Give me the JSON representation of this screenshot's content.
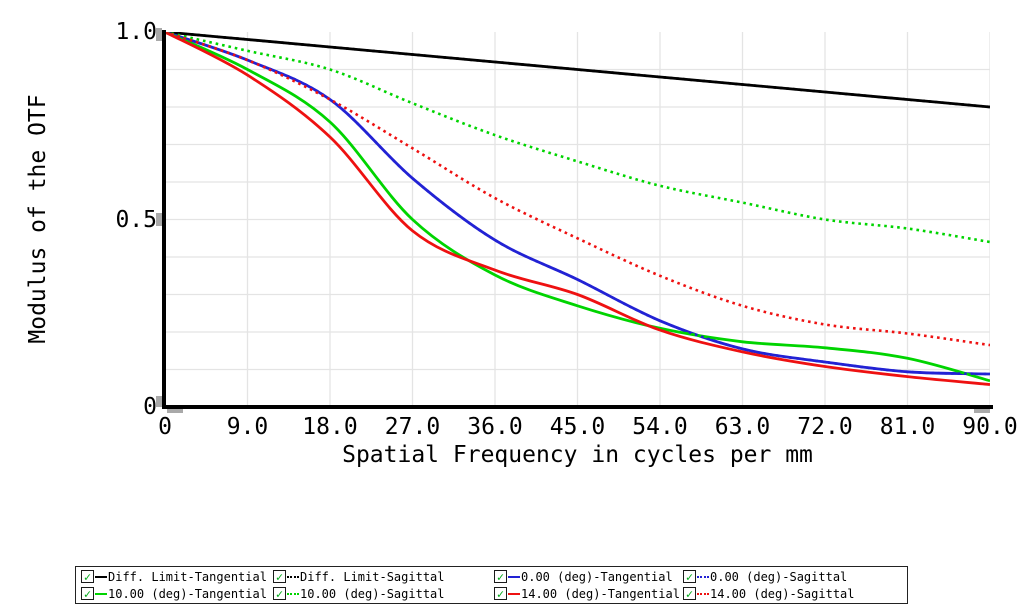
{
  "chart_data": {
    "type": "line",
    "title": "",
    "xlabel": "Spatial Frequency in cycles per mm",
    "ylabel": "Modulus of the OTF",
    "xlim": [
      0,
      90
    ],
    "ylim": [
      0,
      1
    ],
    "grid": true,
    "x_grid_step": 9,
    "y_grid_step": 0.1,
    "grid_color": "#e4e4e4",
    "legend_position": "bottom",
    "x_ticks": [
      {
        "label": "0",
        "value": 0
      },
      {
        "label": "9.0",
        "value": 9
      },
      {
        "label": "18.0",
        "value": 18
      },
      {
        "label": "27.0",
        "value": 27
      },
      {
        "label": "36.0",
        "value": 36
      },
      {
        "label": "45.0",
        "value": 45
      },
      {
        "label": "54.0",
        "value": 54
      },
      {
        "label": "63.0",
        "value": 63
      },
      {
        "label": "72.0",
        "value": 72
      },
      {
        "label": "81.0",
        "value": 81
      },
      {
        "label": "90.0",
        "value": 90
      }
    ],
    "y_ticks": [
      {
        "label": "1.0",
        "value": 1.0
      },
      {
        "label": "0.5",
        "value": 0.5
      },
      {
        "label": "0",
        "value": 0
      }
    ],
    "x": [
      0,
      9,
      18,
      27,
      36,
      45,
      54,
      63,
      72,
      81,
      90
    ],
    "series": [
      {
        "name": "Diff. Limit-Tangential",
        "color": "#000000",
        "style": "solid",
        "values": [
          1.0,
          0.98,
          0.96,
          0.94,
          0.92,
          0.9,
          0.88,
          0.86,
          0.84,
          0.82,
          0.8
        ]
      },
      {
        "name": "Diff. Limit-Sagittal",
        "color": "#000000",
        "style": "dotted",
        "values": [
          1.0,
          0.98,
          0.96,
          0.94,
          0.92,
          0.9,
          0.88,
          0.86,
          0.84,
          0.82,
          0.8
        ]
      },
      {
        "name": "0.00 (deg)-Tangential",
        "color": "#2222d4",
        "style": "solid",
        "values": [
          1.0,
          0.925,
          0.82,
          0.61,
          0.445,
          0.34,
          0.23,
          0.155,
          0.12,
          0.094,
          0.088
        ]
      },
      {
        "name": "0.00 (deg)-Sagittal",
        "color": "#2222d4",
        "style": "dotted",
        "values": [
          1.0,
          0.925,
          0.82,
          0.61,
          0.445,
          0.34,
          0.23,
          0.155,
          0.12,
          0.094,
          0.088
        ]
      },
      {
        "name": "10.00 (deg)-Tangential",
        "color": "#00d400",
        "style": "solid",
        "values": [
          1.0,
          0.9,
          0.76,
          0.5,
          0.352,
          0.27,
          0.21,
          0.174,
          0.158,
          0.13,
          0.07
        ]
      },
      {
        "name": "10.00 (deg)-Sagittal",
        "color": "#00d400",
        "style": "dotted",
        "values": [
          1.0,
          0.95,
          0.9,
          0.81,
          0.725,
          0.655,
          0.59,
          0.545,
          0.5,
          0.476,
          0.44
        ]
      },
      {
        "name": "14.00 (deg)-Tangential",
        "color": "#ee1111",
        "style": "solid",
        "values": [
          1.0,
          0.885,
          0.72,
          0.47,
          0.365,
          0.3,
          0.205,
          0.147,
          0.108,
          0.081,
          0.06
        ]
      },
      {
        "name": "14.00 (deg)-Sagittal",
        "color": "#ee1111",
        "style": "dotted",
        "values": [
          1.0,
          0.925,
          0.82,
          0.69,
          0.557,
          0.45,
          0.35,
          0.27,
          0.22,
          0.196,
          0.165
        ]
      }
    ]
  },
  "legend": {
    "items": [
      {
        "label": "Diff. Limit-Tangential",
        "color": "#000000",
        "style": "solid",
        "checked": true,
        "check_glyph": "✓"
      },
      {
        "label": "Diff. Limit-Sagittal",
        "color": "#000000",
        "style": "dotted",
        "checked": true,
        "check_glyph": "✓"
      },
      {
        "label": "0.00 (deg)-Tangential",
        "color": "#2222d4",
        "style": "solid",
        "checked": true,
        "check_glyph": "✓"
      },
      {
        "label": "0.00 (deg)-Sagittal",
        "color": "#2222d4",
        "style": "dotted",
        "checked": true,
        "check_glyph": "✓"
      },
      {
        "label": "10.00 (deg)-Tangential",
        "color": "#00d400",
        "style": "solid",
        "checked": true,
        "check_glyph": "✓"
      },
      {
        "label": "10.00 (deg)-Sagittal",
        "color": "#00d400",
        "style": "dotted",
        "checked": true,
        "check_glyph": "✓"
      },
      {
        "label": "14.00 (deg)-Tangential",
        "color": "#ee1111",
        "style": "solid",
        "checked": true,
        "check_glyph": "✓"
      },
      {
        "label": "14.00 (deg)-Sagittal",
        "color": "#ee1111",
        "style": "dotted",
        "checked": true,
        "check_glyph": "✓"
      }
    ]
  }
}
